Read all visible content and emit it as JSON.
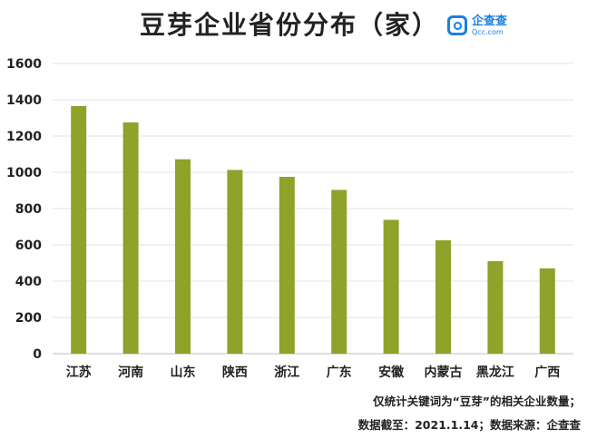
{
  "title": "豆芽企业省份分布（家）",
  "logo": {
    "name": "企查查",
    "sub": "Qcc.com"
  },
  "chart_data": {
    "type": "bar",
    "categories": [
      "江苏",
      "河南",
      "山东",
      "陕西",
      "浙江",
      "广东",
      "安徽",
      "内蒙古",
      "黑龙江",
      "广西"
    ],
    "values": [
      1365,
      1275,
      1072,
      1013,
      975,
      903,
      738,
      625,
      510,
      470
    ],
    "ylim": [
      0,
      1600
    ],
    "yticks": [
      0,
      200,
      400,
      600,
      800,
      1000,
      1200,
      1400,
      1600
    ],
    "grid": true,
    "bar_color": "#8fa22a"
  },
  "notes": {
    "line1": "仅统计关键词为“豆芽”的相关企业数量；",
    "line2": "数据截至：2021.1.14；数据来源：企查查"
  }
}
